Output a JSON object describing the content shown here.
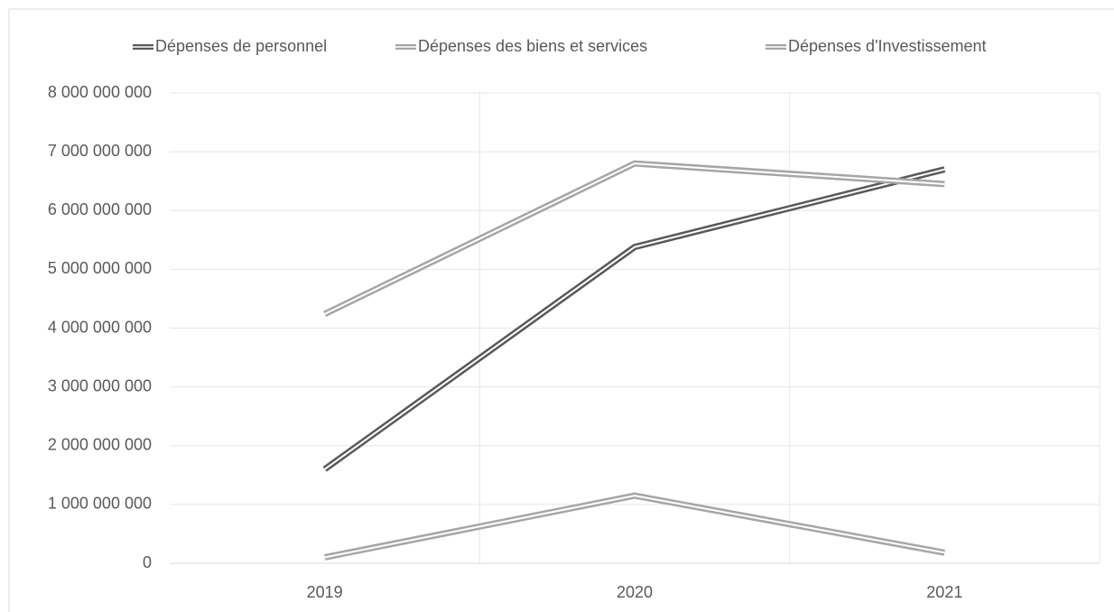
{
  "chart_data": {
    "type": "line",
    "categories": [
      "2019",
      "2020",
      "2021"
    ],
    "series": [
      {
        "name": "Dépenses de personnel",
        "color": "#595959",
        "values": [
          1600000000,
          5380000000,
          6700000000
        ]
      },
      {
        "name": "Dépenses des biens et services",
        "color": "#a6a6a6",
        "values": [
          4240000000,
          6800000000,
          6450000000
        ]
      },
      {
        "name": "Dépenses d'Investissement",
        "color": "#a6a6a6",
        "values": [
          100000000,
          1150000000,
          180000000
        ]
      }
    ],
    "ylim": [
      0,
      8000000000
    ],
    "yticks": [
      0,
      {
        "value": 1000000000,
        "label": "1 000 000 000"
      },
      {
        "value": 2000000000,
        "label": "2 000 000 000"
      },
      {
        "value": 3000000000,
        "label": "3 000 000 000"
      },
      {
        "value": 4000000000,
        "label": "4 000 000 000"
      },
      {
        "value": 5000000000,
        "label": "5 000 000 000"
      },
      {
        "value": 6000000000,
        "label": "6 000 000 000"
      },
      {
        "value": 7000000000,
        "label": "7 000 000 000"
      },
      {
        "value": 8000000000,
        "label": "8 000 000 000"
      }
    ],
    "grid": true,
    "legend": "top"
  }
}
